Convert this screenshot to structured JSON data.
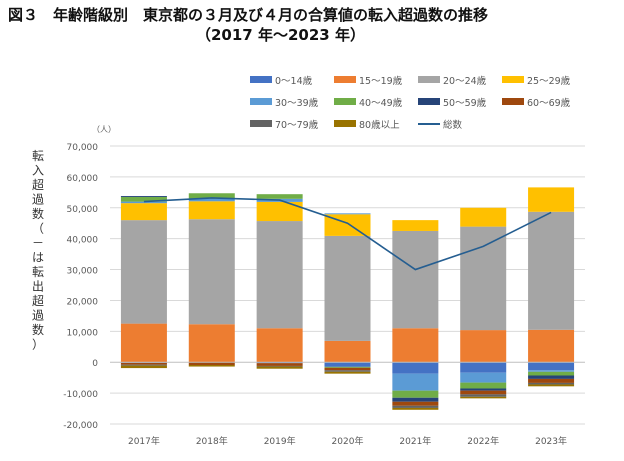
{
  "chart_data": {
    "type": "bar",
    "stacked": true,
    "title": "図３　年齢階級別　東京都の３月及び４月の合算値の転入超過数の推移",
    "subtitle": "（2017 年～2023 年）",
    "ylabel": "転入超過数（－は転出超過数）",
    "yunit": "（人）",
    "ylim": [
      -20000,
      70000
    ],
    "yticks": [
      -20000,
      -10000,
      0,
      10000,
      20000,
      30000,
      40000,
      50000,
      60000,
      70000
    ],
    "ytick_labels": [
      "-20,000",
      "-10,000",
      "0",
      "10,000",
      "20,000",
      "30,000",
      "40,000",
      "50,000",
      "60,000",
      "70,000"
    ],
    "grid": true,
    "legend_position": "top-right",
    "categories": [
      "2017年",
      "2018年",
      "2019年",
      "2020年",
      "2021年",
      "2022年",
      "2023年"
    ],
    "series": [
      {
        "name": "0～14歳",
        "color": "#4472C4",
        "values": [
          -200,
          0,
          -300,
          -1500,
          -3700,
          -3400,
          -2600
        ]
      },
      {
        "name": "15～19歳",
        "color": "#ED7D31",
        "values": [
          12500,
          12300,
          11000,
          6900,
          11000,
          10400,
          10500
        ]
      },
      {
        "name": "20～24歳",
        "color": "#A5A5A5",
        "values": [
          33500,
          34000,
          34700,
          34000,
          31500,
          33500,
          38200
        ]
      },
      {
        "name": "25～29歳",
        "color": "#FFC000",
        "values": [
          5500,
          5800,
          6200,
          7000,
          3500,
          6100,
          7900
        ]
      },
      {
        "name": "30～39歳",
        "color": "#5B9BD5",
        "values": [
          500,
          800,
          1000,
          300,
          -5500,
          -3200,
          -500
        ]
      },
      {
        "name": "40～49歳",
        "color": "#70AD47",
        "values": [
          1500,
          1800,
          1500,
          -300,
          -2300,
          -1900,
          -1200
        ]
      },
      {
        "name": "50～59歳",
        "color": "#264478",
        "values": [
          300,
          0,
          0,
          0,
          -1300,
          -700,
          -1100
        ]
      },
      {
        "name": "60～69歳",
        "color": "#9E480E",
        "values": [
          -600,
          -900,
          -900,
          -800,
          -1300,
          -1200,
          -1300
        ]
      },
      {
        "name": "70～79歳",
        "color": "#636363",
        "values": [
          -300,
          0,
          -200,
          -500,
          -700,
          -800,
          -500
        ]
      },
      {
        "name": "80歳以上",
        "color": "#997300",
        "values": [
          -800,
          -500,
          -700,
          -600,
          -600,
          -500,
          -600
        ]
      }
    ],
    "line": {
      "name": "総数",
      "color": "#255E91",
      "values": [
        52000,
        53200,
        52500,
        45000,
        30000,
        37500,
        48500
      ]
    }
  }
}
